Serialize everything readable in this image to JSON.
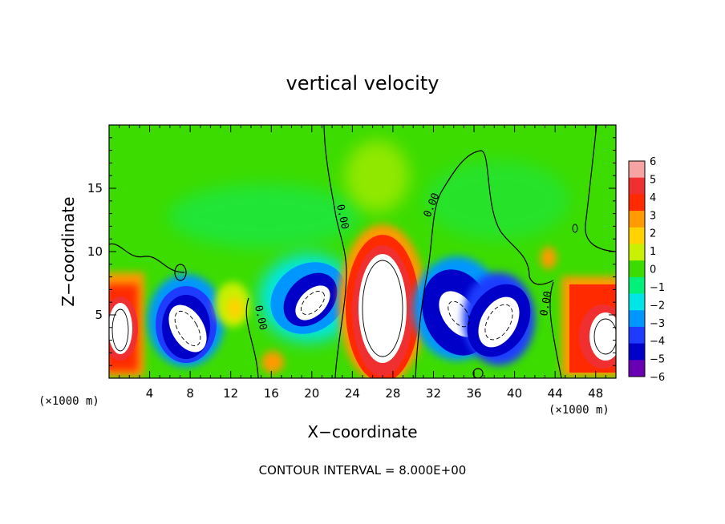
{
  "chart_data": {
    "type": "heatmap",
    "title": "vertical velocity",
    "xlabel": "X−coordinate",
    "ylabel": "Z−coordinate",
    "x_unit": "(×1000 m)",
    "y_unit": "(×1000 m)",
    "xlim": [
      0,
      50
    ],
    "ylim": [
      0,
      20
    ],
    "x_ticks": [
      4,
      8,
      12,
      16,
      20,
      24,
      28,
      32,
      36,
      40,
      44,
      48
    ],
    "y_ticks": [
      5,
      10,
      15
    ],
    "colorbar": {
      "levels": [
        6,
        5,
        4,
        3,
        2,
        1,
        0,
        -1,
        -2,
        -3,
        -4,
        -5,
        -6
      ],
      "labels": [
        "6",
        "5",
        "4",
        "3",
        "2",
        "1",
        "0",
        "−1",
        "−2",
        "−3",
        "−4",
        "−5",
        "−6"
      ],
      "colors": [
        "#f5a3a3",
        "#f03030",
        "#ff2a00",
        "#ff9a00",
        "#ffd200",
        "#c8f000",
        "#3cdc00",
        "#00f07a",
        "#00e6e6",
        "#0096ff",
        "#1e3cff",
        "#0000c8",
        "#6a00b4"
      ]
    },
    "contour_label": "0.00",
    "contour_interval_text": "CONTOUR INTERVAL = 8.000E+00",
    "features": [
      {
        "kind": "updraft",
        "x": 1.2,
        "z": 4.2,
        "peak": 7
      },
      {
        "kind": "downdraft",
        "x": 7.5,
        "z": 3.6,
        "peak": -7
      },
      {
        "kind": "updraft",
        "x": 12.2,
        "z": 5.5,
        "peak": 1.5
      },
      {
        "kind": "updraft",
        "x": 16.0,
        "z": 1.2,
        "peak": 2
      },
      {
        "kind": "downdraft",
        "x": 19.5,
        "z": 5.8,
        "peak": -7
      },
      {
        "kind": "updraft",
        "x": 27.0,
        "z": 6.5,
        "peak": 8
      },
      {
        "kind": "downdraft",
        "x": 34.5,
        "z": 5.0,
        "peak": -7
      },
      {
        "kind": "downdraft",
        "x": 38.0,
        "z": 4.2,
        "peak": -7
      },
      {
        "kind": "updraft",
        "x": 43.5,
        "z": 9.5,
        "peak": 2
      },
      {
        "kind": "updraft",
        "x": 49.0,
        "z": 3.5,
        "peak": 7
      }
    ]
  }
}
